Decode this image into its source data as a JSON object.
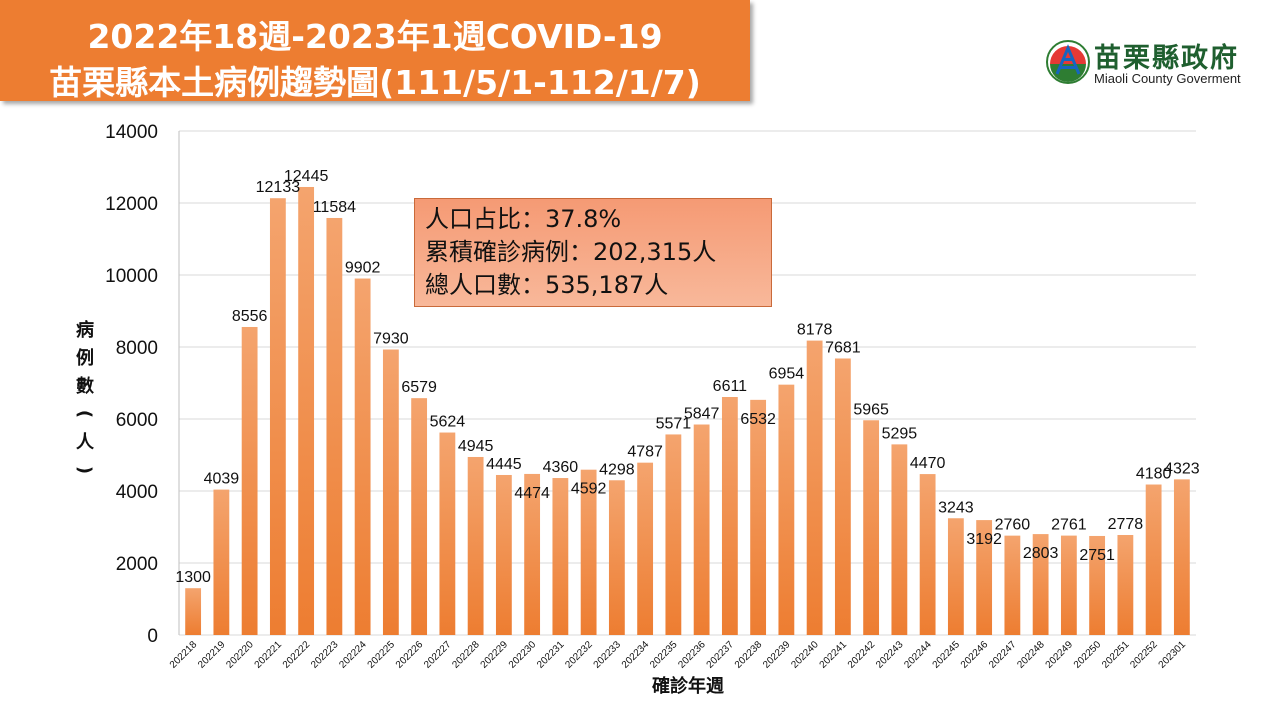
{
  "header": {
    "title_line1": "2022年18週-2023年1週COVID-19",
    "title_line2": "苗栗縣本土病例趨勢圖(111/5/1-112/1/7)"
  },
  "branding": {
    "name": "苗栗縣政府",
    "name_en": "Miaoli County Goverment",
    "logo_icon": "miaoli-county-emblem-icon"
  },
  "info_box": {
    "line1": "人口占比：37.8%",
    "line2": "累積確診病例：202,315人",
    "line3": "總人口數：535,187人"
  },
  "colors": {
    "bar": "#ed7d31",
    "bar_light": "#f4a46e",
    "title_bg": "#ed7d31",
    "grid": "#d9d9d9"
  },
  "chart_data": {
    "type": "bar",
    "title": "",
    "xlabel": "確診年週",
    "ylabel": "病例數(人)",
    "ylim": [
      0,
      14000
    ],
    "yticks": [
      0,
      2000,
      4000,
      6000,
      8000,
      10000,
      12000,
      14000
    ],
    "grid": true,
    "categories": [
      "202218",
      "202219",
      "202220",
      "202221",
      "202222",
      "202223",
      "202224",
      "202225",
      "202226",
      "202227",
      "202228",
      "202229",
      "202230",
      "202231",
      "202232",
      "202233",
      "202234",
      "202235",
      "202236",
      "202237",
      "202238",
      "202239",
      "202240",
      "202241",
      "202242",
      "202243",
      "202244",
      "202245",
      "202246",
      "202247",
      "202248",
      "202249",
      "202250",
      "202251",
      "202252",
      "202301"
    ],
    "values": [
      1300,
      4039,
      8556,
      12133,
      12445,
      11584,
      9902,
      7930,
      6579,
      5624,
      4945,
      4445,
      4474,
      4360,
      4592,
      4298,
      4787,
      5571,
      5847,
      6611,
      6532,
      6954,
      8178,
      7681,
      5965,
      5295,
      4470,
      3243,
      3192,
      2760,
      2803,
      2761,
      2751,
      2778,
      4180,
      4323
    ]
  }
}
